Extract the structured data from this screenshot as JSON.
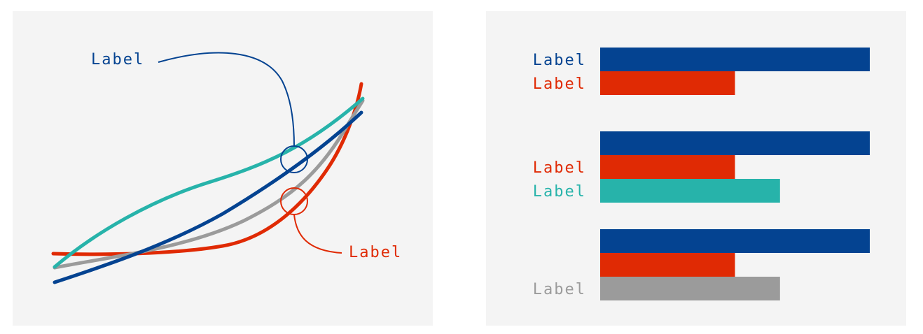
{
  "chart_data": [
    {
      "type": "line",
      "title": "",
      "xlabel": "",
      "ylabel": "",
      "grid": false,
      "series": [
        {
          "color": "#e02a04"
        },
        {
          "color": "#9b9b9b"
        },
        {
          "color": "#044391"
        },
        {
          "color": "#27b3aa"
        }
      ],
      "annotations": [
        {
          "text": "Label",
          "color": "#044391"
        },
        {
          "text": "Label",
          "color": "#e02a04"
        }
      ]
    },
    {
      "type": "bar",
      "orientation": "horizontal",
      "title": "",
      "grid": false,
      "groups": [
        {
          "bars": [
            {
              "label": "Label",
              "value": 1.0,
              "color": "#044391"
            },
            {
              "label": "Label",
              "value": 0.5,
              "color": "#e02a04"
            }
          ]
        },
        {
          "bars": [
            {
              "label": "",
              "value": 1.0,
              "color": "#044391"
            },
            {
              "label": "Label",
              "value": 0.5,
              "color": "#e02a04"
            },
            {
              "label": "Label",
              "value": 0.667,
              "color": "#27b3aa"
            }
          ]
        },
        {
          "bars": [
            {
              "label": "",
              "value": 1.0,
              "color": "#044391"
            },
            {
              "label": "",
              "value": 0.5,
              "color": "#e02a04"
            },
            {
              "label": "Label",
              "value": 0.667,
              "color": "#9b9b9b"
            }
          ]
        }
      ]
    }
  ]
}
